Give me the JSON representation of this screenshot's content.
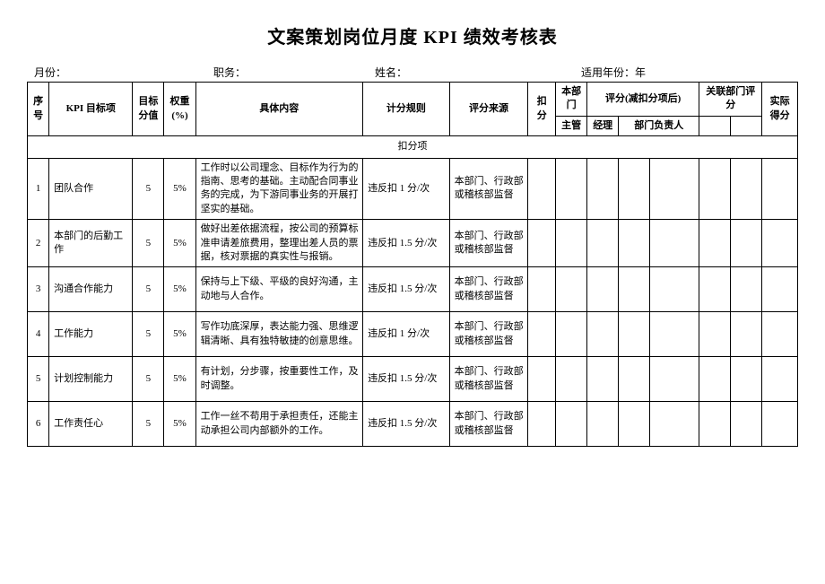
{
  "title": "文案策划岗位月度 KPI 绩效考核表",
  "meta": {
    "month_label": "月份：",
    "position_label": "职务：",
    "name_label": "姓名：",
    "year_label": "适用年份：年"
  },
  "headers": {
    "seq": "序号",
    "kpi_item": "KPI 目标项",
    "target_score": "目标分值",
    "weight": "权重(%)",
    "content": "具体内容",
    "scoring_rule": "计分规则",
    "score_source": "评分来源",
    "deduction": "扣分",
    "dept": "本部门",
    "eval_after": "评分(减扣分项后)",
    "related_dept": "关联部门评分",
    "actual_score": "实际得分",
    "supervisor": "主管",
    "manager": "经理",
    "dept_lead": "部门负责人"
  },
  "section_title": "扣分项",
  "rows": [
    {
      "seq": "1",
      "kpi": "团队合作",
      "target": "5",
      "weight": "5%",
      "content": "工作时以公司理念、目标作为行为的指南、思考的基础。主动配合同事业务的完成，为下游同事业务的开展打坚实的基础。",
      "rule": "违反扣 1 分/次",
      "source": "本部门、行政部或稽核部监督"
    },
    {
      "seq": "2",
      "kpi": "本部门的后勤工作",
      "target": "5",
      "weight": "5%",
      "content": "做好出差依据流程，按公司的预算标准申请差旅费用，整理出差人员的票据，核对票据的真实性与报销。",
      "rule": "违反扣 1.5 分/次",
      "source": "本部门、行政部或稽核部监督"
    },
    {
      "seq": "3",
      "kpi": "沟通合作能力",
      "target": "5",
      "weight": "5%",
      "content": "保持与上下级、平级的良好沟通，主动地与人合作。",
      "rule": "违反扣 1.5 分/次",
      "source": "本部门、行政部或稽核部监督"
    },
    {
      "seq": "4",
      "kpi": "工作能力",
      "target": "5",
      "weight": "5%",
      "content": "写作功底深厚，表达能力强、思维逻辑清晰、具有独特敏捷的创意思维。",
      "rule": "违反扣 1 分/次",
      "source": "本部门、行政部或稽核部监督"
    },
    {
      "seq": "5",
      "kpi": "计划控制能力",
      "target": "5",
      "weight": "5%",
      "content": "有计划，分步骤，按重要性工作，及时调整。",
      "rule": "违反扣 1.5 分/次",
      "source": "本部门、行政部或稽核部监督"
    },
    {
      "seq": "6",
      "kpi": "工作责任心",
      "target": "5",
      "weight": "5%",
      "content": "工作一丝不苟用于承担责任，还能主动承担公司内部额外的工作。",
      "rule": "违反扣 1.5 分/次",
      "source": "本部门、行政部或稽核部监督"
    }
  ],
  "style": {
    "background": "#ffffff",
    "border_color": "#000000",
    "title_fontsize": 20,
    "body_fontsize": 11,
    "meta_fontsize": 12
  }
}
